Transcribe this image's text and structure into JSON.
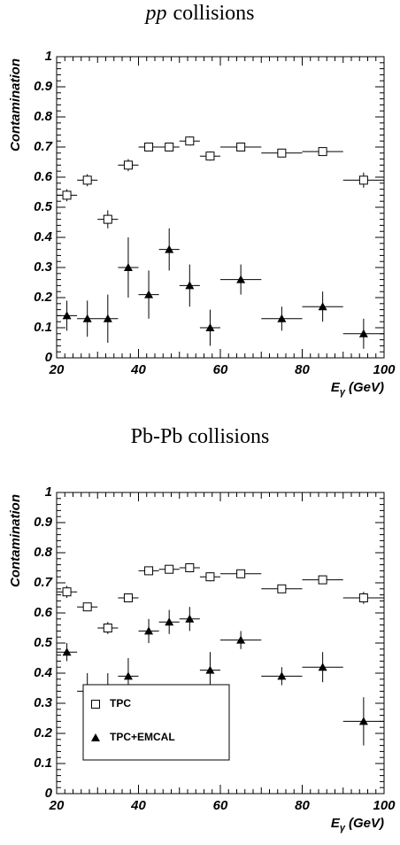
{
  "chart_data": [
    {
      "type": "scatter",
      "title_em": "pp",
      "title": "collisions",
      "ylabel": "Contamination",
      "xlabel": "E",
      "xlabel_sub": "γ",
      "xlabel_unit": "(GeV)",
      "xlim": [
        20,
        100
      ],
      "ylim": [
        0,
        1
      ],
      "xticks": [
        20,
        40,
        60,
        80,
        100
      ],
      "yticks": [
        0,
        0.1,
        0.2,
        0.3,
        0.4,
        0.5,
        0.6,
        0.7,
        0.8,
        0.9,
        1
      ],
      "series": [
        {
          "marker": "open-square",
          "color": "#000000",
          "x": [
            22.5,
            27.5,
            32.5,
            37.5,
            42.5,
            47.5,
            52.5,
            57.5,
            65,
            75,
            85,
            95
          ],
          "xerr": [
            2.5,
            2.5,
            2.5,
            2.5,
            2.5,
            2.5,
            2.5,
            2.5,
            5,
            5,
            5,
            5
          ],
          "values": [
            0.54,
            0.59,
            0.46,
            0.64,
            0.7,
            0.7,
            0.72,
            0.67,
            0.7,
            0.68,
            0.685,
            0.59
          ],
          "yerr": [
            0.02,
            0.02,
            0.03,
            0.02,
            0.01,
            0.01,
            0.015,
            0.015,
            0.01,
            0.01,
            0.01,
            0.025
          ]
        },
        {
          "marker": "filled-triangle",
          "color": "#000000",
          "x": [
            22.5,
            27.5,
            32.5,
            37.5,
            42.5,
            47.5,
            52.5,
            57.5,
            65,
            75,
            85,
            95
          ],
          "xerr": [
            2.5,
            2.5,
            2.5,
            2.5,
            2.5,
            2.5,
            2.5,
            2.5,
            5,
            5,
            5,
            5
          ],
          "values": [
            0.14,
            0.13,
            0.13,
            0.3,
            0.21,
            0.36,
            0.24,
            0.1,
            0.26,
            0.13,
            0.17,
            0.08
          ],
          "yerr": [
            0.05,
            0.06,
            0.08,
            0.1,
            0.08,
            0.07,
            0.07,
            0.06,
            0.05,
            0.04,
            0.05,
            0.05
          ]
        }
      ]
    },
    {
      "type": "scatter",
      "title": "Pb-Pb collisions",
      "ylabel": "Contamination",
      "xlabel": "E",
      "xlabel_sub": "γ",
      "xlabel_unit": "(GeV)",
      "xlim": [
        20,
        100
      ],
      "ylim": [
        0,
        1
      ],
      "xticks": [
        20,
        40,
        60,
        80,
        100
      ],
      "yticks": [
        0,
        0.1,
        0.2,
        0.3,
        0.4,
        0.5,
        0.6,
        0.7,
        0.8,
        0.9,
        1
      ],
      "legend": "lower left",
      "series": [
        {
          "name": "TPC",
          "marker": "open-square",
          "color": "#000000",
          "x": [
            22.5,
            27.5,
            32.5,
            37.5,
            42.5,
            47.5,
            52.5,
            57.5,
            65,
            75,
            85,
            95
          ],
          "xerr": [
            2.5,
            2.5,
            2.5,
            2.5,
            2.5,
            2.5,
            2.5,
            2.5,
            5,
            5,
            5,
            5
          ],
          "values": [
            0.67,
            0.62,
            0.55,
            0.65,
            0.74,
            0.745,
            0.75,
            0.72,
            0.73,
            0.68,
            0.71,
            0.65
          ],
          "yerr": [
            0.02,
            0.01,
            0.02,
            0.01,
            0.01,
            0.01,
            0.015,
            0.015,
            0.01,
            0.01,
            0.01,
            0.02
          ]
        },
        {
          "name": "TPC+EMCAL",
          "marker": "filled-triangle",
          "color": "#000000",
          "x": [
            22.5,
            27.5,
            32.5,
            37.5,
            42.5,
            47.5,
            52.5,
            57.5,
            65,
            75,
            85,
            95
          ],
          "xerr": [
            2.5,
            2.5,
            2.5,
            2.5,
            2.5,
            2.5,
            2.5,
            2.5,
            5,
            5,
            5,
            5
          ],
          "values": [
            0.47,
            0.34,
            0.33,
            0.39,
            0.54,
            0.57,
            0.58,
            0.41,
            0.51,
            0.39,
            0.42,
            0.24
          ],
          "yerr": [
            0.03,
            0.06,
            0.07,
            0.06,
            0.04,
            0.04,
            0.04,
            0.06,
            0.03,
            0.03,
            0.05,
            0.08
          ]
        }
      ]
    }
  ]
}
